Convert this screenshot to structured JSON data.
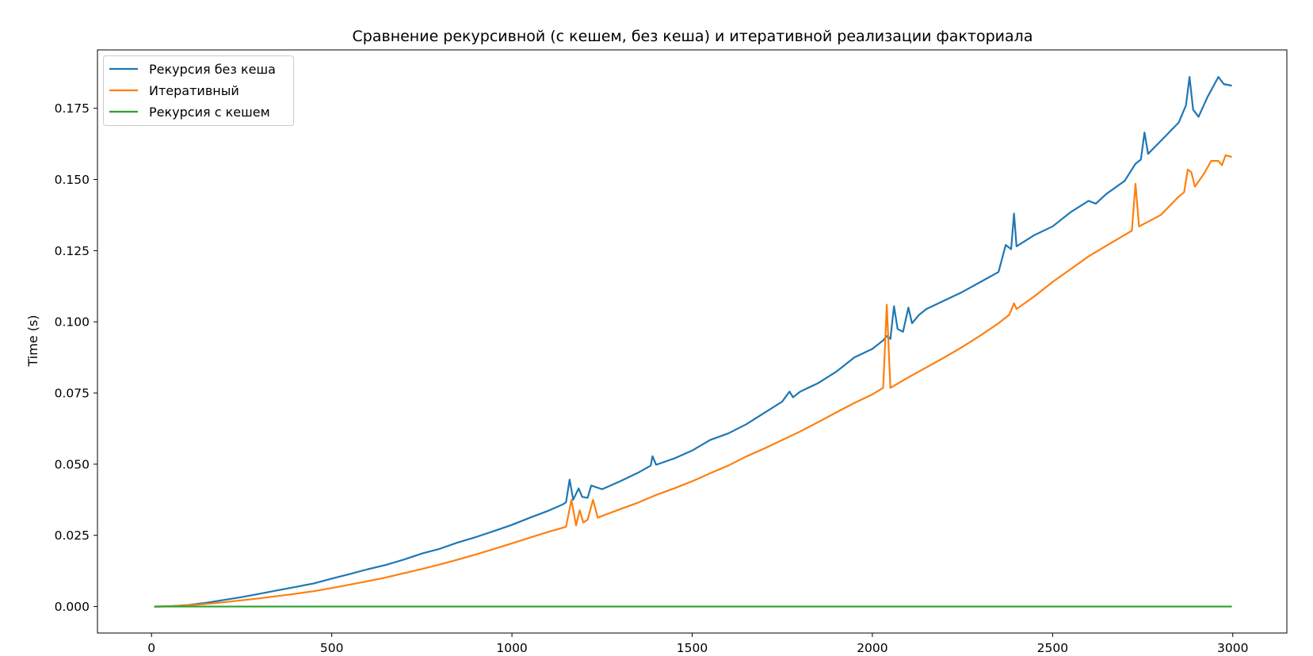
{
  "chart_data": {
    "type": "line",
    "title": "Сравнение рекурсивной (с кешем, без кеша) и итеративной реализации факториала",
    "xlabel": "",
    "ylabel": "Time (s)",
    "xlim": [
      -150,
      3150
    ],
    "ylim": [
      -0.0093,
      0.1955
    ],
    "xticks": [
      0,
      500,
      1000,
      1500,
      2000,
      2500,
      3000
    ],
    "xtick_labels": [
      "0",
      "500",
      "1000",
      "1500",
      "2000",
      "2500",
      "3000"
    ],
    "yticks": [
      0.0,
      0.025,
      0.05,
      0.075,
      0.1,
      0.125,
      0.15,
      0.175
    ],
    "ytick_labels": [
      "0.000",
      "0.025",
      "0.050",
      "0.075",
      "0.100",
      "0.125",
      "0.150",
      "0.175"
    ],
    "grid": false,
    "legend_position": "top-left",
    "series": [
      {
        "name": "Рекурсия без кеша",
        "color": "#1f77b4",
        "points": [
          [
            10,
            0.0
          ],
          [
            50,
            0.0001
          ],
          [
            100,
            0.0005
          ],
          [
            150,
            0.0013
          ],
          [
            200,
            0.0023
          ],
          [
            250,
            0.0033
          ],
          [
            300,
            0.0045
          ],
          [
            350,
            0.0057
          ],
          [
            400,
            0.0069
          ],
          [
            450,
            0.0081
          ],
          [
            500,
            0.0098
          ],
          [
            550,
            0.0114
          ],
          [
            600,
            0.0131
          ],
          [
            650,
            0.0146
          ],
          [
            700,
            0.0165
          ],
          [
            750,
            0.0186
          ],
          [
            800,
            0.0203
          ],
          [
            850,
            0.0225
          ],
          [
            900,
            0.0244
          ],
          [
            950,
            0.0265
          ],
          [
            1000,
            0.0287
          ],
          [
            1050,
            0.0312
          ],
          [
            1100,
            0.0336
          ],
          [
            1140,
            0.0358
          ],
          [
            1150,
            0.0366
          ],
          [
            1160,
            0.0446
          ],
          [
            1170,
            0.0375
          ],
          [
            1185,
            0.0415
          ],
          [
            1195,
            0.0385
          ],
          [
            1210,
            0.0382
          ],
          [
            1220,
            0.0425
          ],
          [
            1250,
            0.0412
          ],
          [
            1300,
            0.044
          ],
          [
            1350,
            0.047
          ],
          [
            1385,
            0.0495
          ],
          [
            1390,
            0.0528
          ],
          [
            1400,
            0.0498
          ],
          [
            1450,
            0.052
          ],
          [
            1500,
            0.0548
          ],
          [
            1550,
            0.0585
          ],
          [
            1600,
            0.0608
          ],
          [
            1650,
            0.064
          ],
          [
            1700,
            0.068
          ],
          [
            1750,
            0.072
          ],
          [
            1770,
            0.0755
          ],
          [
            1780,
            0.0735
          ],
          [
            1800,
            0.0755
          ],
          [
            1850,
            0.0785
          ],
          [
            1900,
            0.0825
          ],
          [
            1950,
            0.0875
          ],
          [
            2000,
            0.0905
          ],
          [
            2030,
            0.0935
          ],
          [
            2040,
            0.095
          ],
          [
            2050,
            0.094
          ],
          [
            2060,
            0.1055
          ],
          [
            2070,
            0.0975
          ],
          [
            2085,
            0.0965
          ],
          [
            2100,
            0.105
          ],
          [
            2110,
            0.0995
          ],
          [
            2130,
            0.1025
          ],
          [
            2150,
            0.1045
          ],
          [
            2200,
            0.1075
          ],
          [
            2250,
            0.1105
          ],
          [
            2300,
            0.114
          ],
          [
            2350,
            0.1175
          ],
          [
            2370,
            0.127
          ],
          [
            2385,
            0.1255
          ],
          [
            2393,
            0.138
          ],
          [
            2400,
            0.1265
          ],
          [
            2450,
            0.1305
          ],
          [
            2500,
            0.1335
          ],
          [
            2550,
            0.1385
          ],
          [
            2600,
            0.1425
          ],
          [
            2620,
            0.1415
          ],
          [
            2650,
            0.145
          ],
          [
            2700,
            0.1495
          ],
          [
            2730,
            0.1555
          ],
          [
            2745,
            0.157
          ],
          [
            2755,
            0.1665
          ],
          [
            2765,
            0.159
          ],
          [
            2800,
            0.1635
          ],
          [
            2850,
            0.17
          ],
          [
            2870,
            0.176
          ],
          [
            2880,
            0.186
          ],
          [
            2890,
            0.1745
          ],
          [
            2905,
            0.172
          ],
          [
            2930,
            0.179
          ],
          [
            2960,
            0.186
          ],
          [
            2975,
            0.1835
          ],
          [
            2995,
            0.183
          ]
        ]
      },
      {
        "name": "Итеративный",
        "color": "#ff7f0e",
        "points": [
          [
            10,
            0.0
          ],
          [
            50,
            0.0001
          ],
          [
            100,
            0.0004
          ],
          [
            150,
            0.0009
          ],
          [
            200,
            0.0015
          ],
          [
            250,
            0.0022
          ],
          [
            300,
            0.0029
          ],
          [
            350,
            0.0037
          ],
          [
            400,
            0.0045
          ],
          [
            450,
            0.0054
          ],
          [
            500,
            0.0065
          ],
          [
            550,
            0.0077
          ],
          [
            600,
            0.0089
          ],
          [
            650,
            0.0102
          ],
          [
            700,
            0.0117
          ],
          [
            750,
            0.0132
          ],
          [
            800,
            0.0148
          ],
          [
            850,
            0.0165
          ],
          [
            900,
            0.0183
          ],
          [
            950,
            0.0202
          ],
          [
            1000,
            0.0222
          ],
          [
            1050,
            0.0242
          ],
          [
            1100,
            0.0262
          ],
          [
            1150,
            0.028
          ],
          [
            1165,
            0.0375
          ],
          [
            1178,
            0.0285
          ],
          [
            1188,
            0.0338
          ],
          [
            1198,
            0.0295
          ],
          [
            1210,
            0.0305
          ],
          [
            1225,
            0.0375
          ],
          [
            1238,
            0.0312
          ],
          [
            1250,
            0.0318
          ],
          [
            1300,
            0.0342
          ],
          [
            1350,
            0.0365
          ],
          [
            1400,
            0.0392
          ],
          [
            1450,
            0.0415
          ],
          [
            1500,
            0.044
          ],
          [
            1550,
            0.0468
          ],
          [
            1600,
            0.0495
          ],
          [
            1650,
            0.0527
          ],
          [
            1700,
            0.0555
          ],
          [
            1750,
            0.0585
          ],
          [
            1800,
            0.0615
          ],
          [
            1850,
            0.0648
          ],
          [
            1900,
            0.0682
          ],
          [
            1950,
            0.0715
          ],
          [
            2000,
            0.0745
          ],
          [
            2030,
            0.0768
          ],
          [
            2040,
            0.106
          ],
          [
            2050,
            0.0768
          ],
          [
            2100,
            0.0805
          ],
          [
            2150,
            0.084
          ],
          [
            2200,
            0.0875
          ],
          [
            2250,
            0.0912
          ],
          [
            2300,
            0.0952
          ],
          [
            2350,
            0.0995
          ],
          [
            2380,
            0.1025
          ],
          [
            2393,
            0.1065
          ],
          [
            2400,
            0.1045
          ],
          [
            2450,
            0.109
          ],
          [
            2500,
            0.114
          ],
          [
            2550,
            0.1185
          ],
          [
            2600,
            0.123
          ],
          [
            2650,
            0.1268
          ],
          [
            2700,
            0.1305
          ],
          [
            2720,
            0.132
          ],
          [
            2730,
            0.1485
          ],
          [
            2740,
            0.1335
          ],
          [
            2800,
            0.1375
          ],
          [
            2850,
            0.144
          ],
          [
            2865,
            0.1455
          ],
          [
            2875,
            0.1535
          ],
          [
            2885,
            0.1525
          ],
          [
            2895,
            0.1475
          ],
          [
            2920,
            0.152
          ],
          [
            2940,
            0.1565
          ],
          [
            2960,
            0.1565
          ],
          [
            2970,
            0.155
          ],
          [
            2980,
            0.1585
          ],
          [
            2995,
            0.158
          ]
        ]
      },
      {
        "name": "Рекурсия с кешем",
        "color": "#2ca02c",
        "points": [
          [
            10,
            0.0
          ],
          [
            500,
            0.0
          ],
          [
            1000,
            0.0
          ],
          [
            1500,
            0.0
          ],
          [
            2000,
            0.0
          ],
          [
            2500,
            0.0
          ],
          [
            2995,
            0.0
          ]
        ]
      }
    ]
  }
}
